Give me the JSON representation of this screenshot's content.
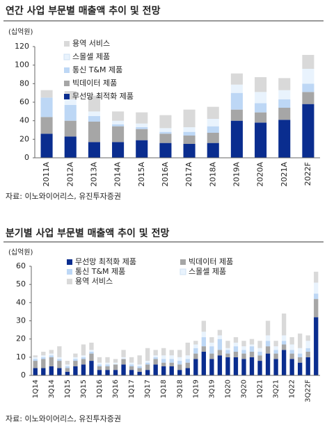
{
  "chart_data": [
    {
      "type": "bar",
      "stacked": true,
      "title": "연간 사업 부문별 매출액 추이 및 전망",
      "y_label": "(십억원)",
      "source": "자료: 이노와이어리스, 유진투자증권",
      "categories": [
        "2011A",
        "2012A",
        "2013A",
        "2014A",
        "2015A",
        "2016A",
        "2017A",
        "2018A",
        "2019A",
        "2020A",
        "2021A",
        "2022F"
      ],
      "ylim": [
        0,
        120
      ],
      "yticks": [
        0,
        20,
        40,
        60,
        80,
        100,
        120
      ],
      "grid": false,
      "series": [
        {
          "name": "무선망 최적화 제품",
          "color": "#0a2d8f",
          "values": [
            26,
            23,
            17,
            17,
            19,
            16,
            15,
            16,
            40,
            38,
            41,
            58
          ]
        },
        {
          "name": "빅데이터 제품",
          "color": "#a6a6a6",
          "values": [
            18,
            17,
            22,
            17,
            12,
            10,
            9,
            11,
            12,
            11,
            13,
            13
          ]
        },
        {
          "name": "통신 T&M 제품",
          "color": "#bdd7f5",
          "values": [
            21,
            17,
            6,
            2,
            2,
            2,
            4,
            7,
            18,
            10,
            9,
            9
          ]
        },
        {
          "name": "스몰셀 제품",
          "color": "#e9f3fd",
          "values": [
            0,
            6,
            5,
            4,
            4,
            4,
            5,
            8,
            9,
            12,
            10,
            16
          ]
        },
        {
          "name": "용역 서비스",
          "color": "#d9d9d9",
          "values": [
            8,
            9,
            17,
            10,
            12,
            14,
            19,
            13,
            12,
            16,
            13,
            15
          ]
        }
      ]
    },
    {
      "type": "bar",
      "stacked": true,
      "title": "분기별 사업 부문별 매출액 추이 및 전망",
      "y_label": "(십억원)",
      "source": "자료: 이노와이어리스, 유진투자증권",
      "categories": [
        "1Q14",
        null,
        "3Q14",
        null,
        "1Q15",
        null,
        "3Q15",
        null,
        "1Q16",
        null,
        "3Q16",
        null,
        "1Q17",
        null,
        "3Q17",
        null,
        "1Q18",
        null,
        "3Q18",
        null,
        "1Q19",
        null,
        "3Q19",
        null,
        "1Q20",
        null,
        "3Q20",
        null,
        "1Q21",
        null,
        "3Q21",
        null,
        "1Q22",
        null,
        "3Q22F",
        null
      ],
      "ylim": [
        0,
        60
      ],
      "yticks": [
        0,
        10,
        20,
        30,
        40,
        50,
        60
      ],
      "grid": false,
      "series": [
        {
          "name": "무선망 최적화 제품",
          "color": "#0a2d8f",
          "values": [
            4,
            4,
            5,
            4,
            2,
            5,
            6,
            8,
            3,
            3,
            3,
            6,
            3,
            2,
            3,
            6,
            5,
            5,
            3,
            4,
            9,
            13,
            9,
            11,
            10,
            10,
            9,
            10,
            8,
            12,
            9,
            14,
            9,
            7,
            10,
            32
          ]
        },
        {
          "name": "빅데이터 제품",
          "color": "#a6a6a6",
          "values": [
            4,
            5,
            5,
            4,
            2,
            3,
            3,
            4,
            2,
            2,
            3,
            3,
            2,
            2,
            3,
            3,
            2,
            2,
            3,
            3,
            3,
            3,
            3,
            3,
            2,
            3,
            3,
            3,
            3,
            4,
            3,
            3,
            3,
            3,
            3,
            10
          ]
        },
        {
          "name": "통신 T&M 제품",
          "color": "#bdd7f5",
          "values": [
            1,
            1,
            1,
            1,
            1,
            1,
            1,
            1,
            1,
            1,
            0,
            0,
            1,
            1,
            1,
            1,
            2,
            2,
            2,
            2,
            3,
            5,
            4,
            6,
            2,
            3,
            2,
            3,
            2,
            3,
            2,
            2,
            2,
            2,
            2,
            3
          ]
        },
        {
          "name": "스몰셀 제품",
          "color": "#e9f3fd",
          "values": [
            1,
            1,
            1,
            1,
            1,
            1,
            1,
            1,
            1,
            1,
            1,
            1,
            1,
            1,
            1,
            1,
            2,
            2,
            2,
            2,
            2,
            3,
            2,
            2,
            1,
            2,
            2,
            1,
            2,
            3,
            2,
            3,
            3,
            3,
            4,
            6
          ]
        },
        {
          "name": "용역 서비스",
          "color": "#d9d9d9",
          "values": [
            1,
            2,
            2,
            6,
            2,
            2,
            6,
            4,
            3,
            3,
            2,
            4,
            3,
            5,
            7,
            3,
            4,
            3,
            4,
            7,
            2,
            6,
            3,
            3,
            4,
            3,
            3,
            3,
            4,
            8,
            3,
            12,
            4,
            8,
            3,
            6
          ]
        }
      ]
    }
  ]
}
